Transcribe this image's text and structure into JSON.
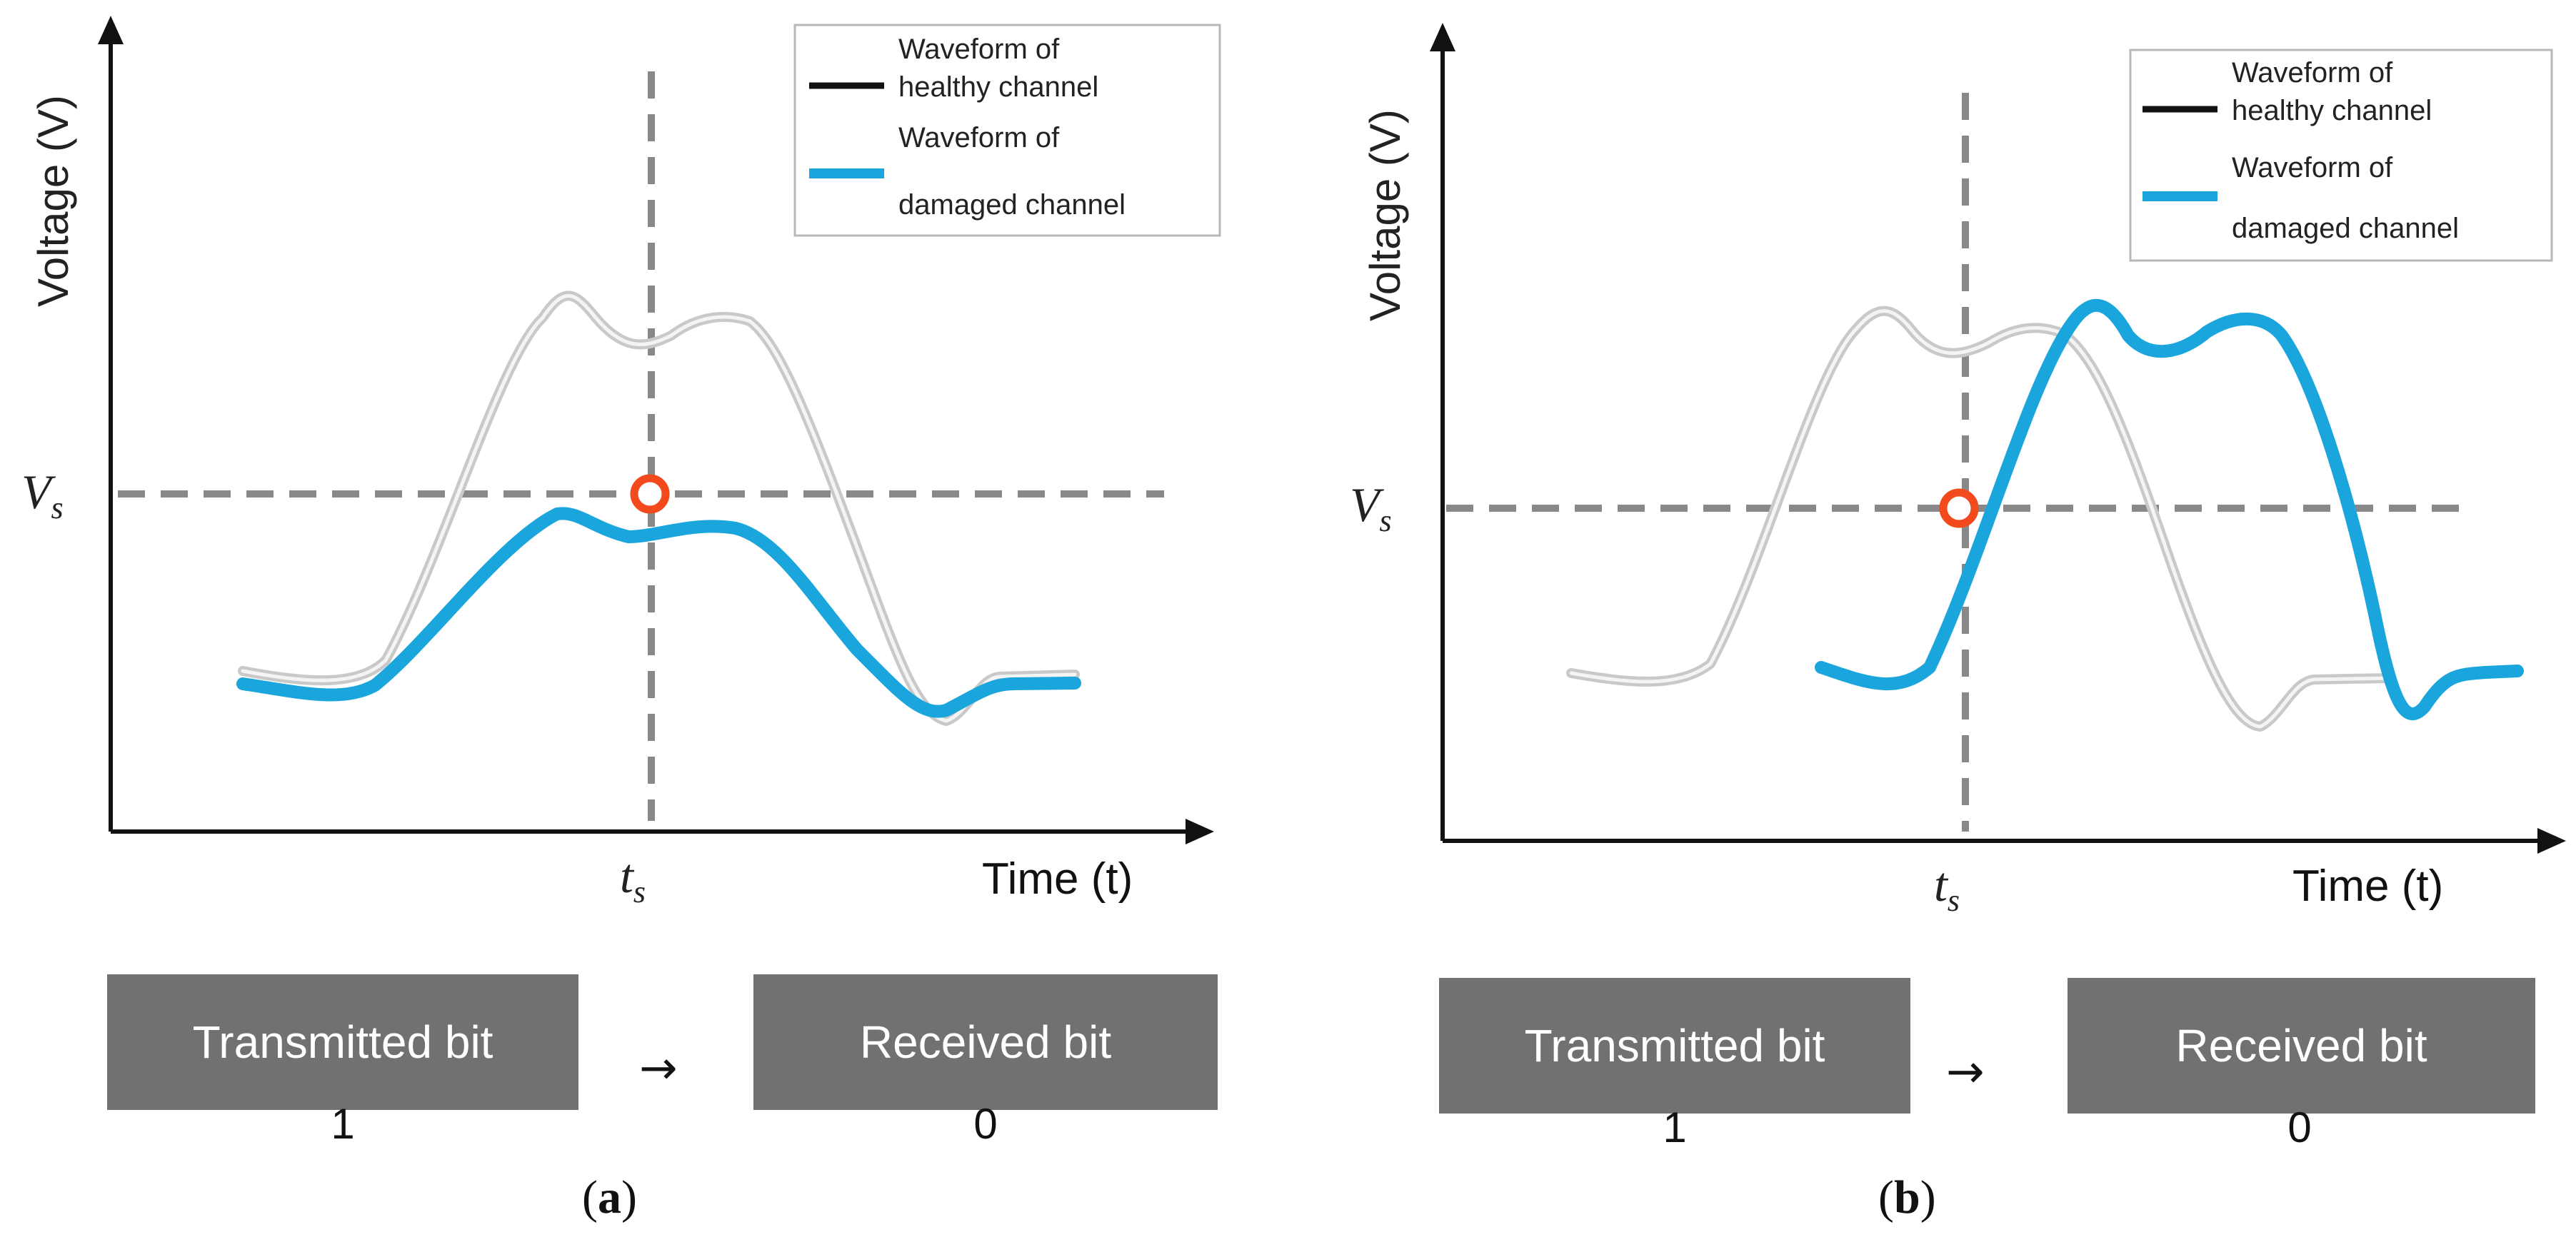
{
  "colors": {
    "healthy": "#c9c9c9",
    "damaged": "#1aa6dc",
    "dashed": "#888888",
    "marker": "#f24a1d",
    "box": "#717171"
  },
  "panels": [
    {
      "id": "a",
      "y_axis_label": "Voltage (V)",
      "x_axis_label": "Time (t)",
      "threshold_label": "V",
      "threshold_subscript": "s",
      "time_label": "t",
      "time_subscript": "s",
      "legend": [
        {
          "line1": "Waveform of",
          "line2": "healthy channel",
          "color": "#111111"
        },
        {
          "line1": "Waveform of",
          "line2": "damaged channel",
          "color": "#1aa6dc"
        }
      ],
      "transmitted_label": "Transmitted bit",
      "received_label": "Received bit",
      "transmitted_value": "1",
      "received_value": "0",
      "arrow": "→",
      "caption_open": "(",
      "caption_letter": "a",
      "caption_close": ")"
    },
    {
      "id": "b",
      "y_axis_label": "Voltage (V)",
      "x_axis_label": "Time (t)",
      "threshold_label": "V",
      "threshold_subscript": "s",
      "time_label": "t",
      "time_subscript": "s",
      "legend": [
        {
          "line1": "Waveform of",
          "line2": "healthy channel",
          "color": "#111111"
        },
        {
          "line1": "Waveform of",
          "line2": "damaged channel",
          "color": "#1aa6dc"
        }
      ],
      "transmitted_label": "Transmitted bit",
      "received_label": "Received bit",
      "transmitted_value": "1",
      "received_value": "0",
      "arrow": "→",
      "caption_open": "(",
      "caption_letter": "b",
      "caption_close": ")"
    }
  ]
}
